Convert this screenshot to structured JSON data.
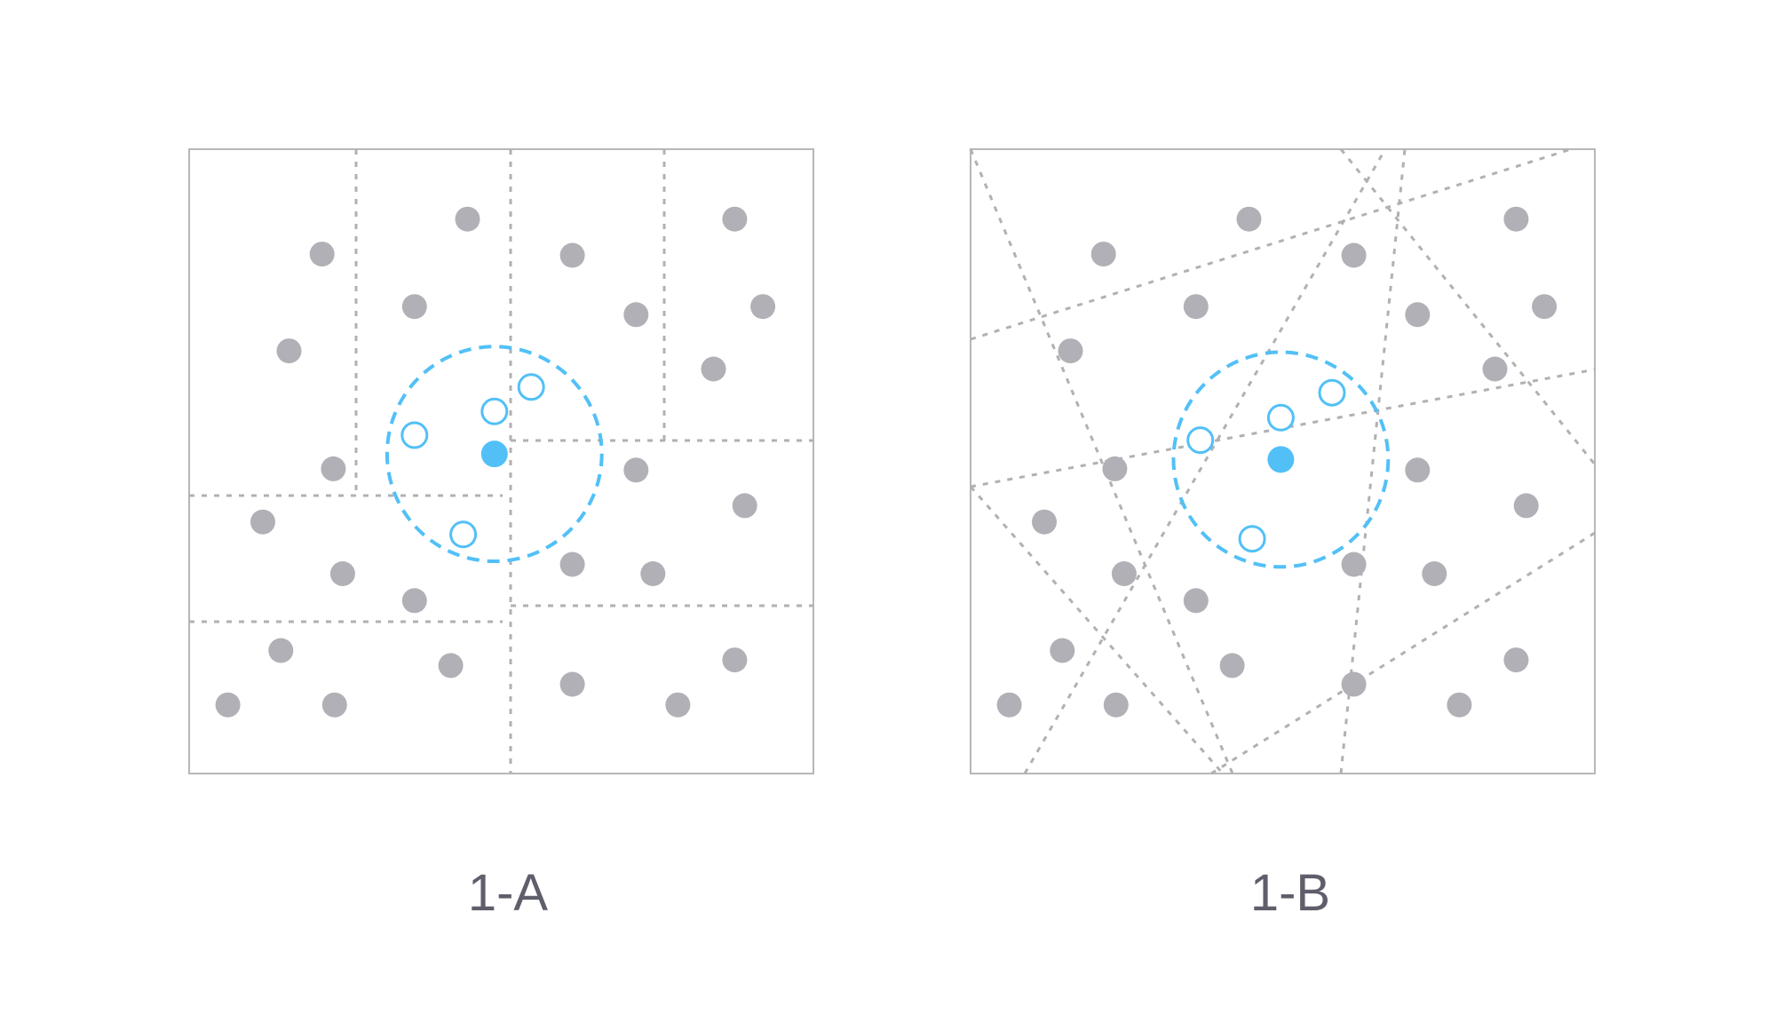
{
  "colors": {
    "point": "#b0b0b6",
    "query": "#52c0f7",
    "caption": "#5f5f6b",
    "frame": "#b7b7bb",
    "partition": "#b1b1b3"
  },
  "panels": [
    {
      "id": "a",
      "caption": "1-A",
      "partition_style": "axis-aligned",
      "points": [
        [
          0.213,
          0.168
        ],
        [
          0.446,
          0.112
        ],
        [
          0.614,
          0.17
        ],
        [
          0.874,
          0.112
        ],
        [
          0.361,
          0.252
        ],
        [
          0.716,
          0.265
        ],
        [
          0.919,
          0.252
        ],
        [
          0.16,
          0.323
        ],
        [
          0.84,
          0.352
        ],
        [
          0.231,
          0.512
        ],
        [
          0.716,
          0.514
        ],
        [
          0.89,
          0.571
        ],
        [
          0.118,
          0.597
        ],
        [
          0.246,
          0.68
        ],
        [
          0.614,
          0.665
        ],
        [
          0.743,
          0.68
        ],
        [
          0.361,
          0.723
        ],
        [
          0.147,
          0.803
        ],
        [
          0.419,
          0.827
        ],
        [
          0.874,
          0.818
        ],
        [
          0.614,
          0.857
        ],
        [
          0.062,
          0.89
        ],
        [
          0.233,
          0.89
        ],
        [
          0.783,
          0.89
        ]
      ],
      "neighbors": [
        [
          0.548,
          0.381
        ],
        [
          0.489,
          0.42
        ],
        [
          0.361,
          0.458
        ],
        [
          0.439,
          0.617
        ]
      ],
      "query": [
        0.489,
        0.488
      ],
      "radius": 0.172
    },
    {
      "id": "b",
      "caption": "1-B",
      "partition_style": "random-projection",
      "points": [
        [
          0.213,
          0.168
        ],
        [
          0.446,
          0.112
        ],
        [
          0.614,
          0.17
        ],
        [
          0.874,
          0.112
        ],
        [
          0.361,
          0.252
        ],
        [
          0.716,
          0.265
        ],
        [
          0.919,
          0.252
        ],
        [
          0.16,
          0.323
        ],
        [
          0.84,
          0.352
        ],
        [
          0.231,
          0.512
        ],
        [
          0.716,
          0.514
        ],
        [
          0.89,
          0.571
        ],
        [
          0.118,
          0.597
        ],
        [
          0.246,
          0.68
        ],
        [
          0.614,
          0.665
        ],
        [
          0.743,
          0.68
        ],
        [
          0.361,
          0.723
        ],
        [
          0.147,
          0.803
        ],
        [
          0.419,
          0.827
        ],
        [
          0.874,
          0.818
        ],
        [
          0.614,
          0.857
        ],
        [
          0.062,
          0.89
        ],
        [
          0.233,
          0.89
        ],
        [
          0.783,
          0.89
        ]
      ],
      "neighbors": [
        [
          0.579,
          0.39
        ],
        [
          0.497,
          0.43
        ],
        [
          0.368,
          0.466
        ],
        [
          0.451,
          0.624
        ]
      ],
      "query": [
        0.497,
        0.497
      ],
      "radius": 0.172
    }
  ]
}
